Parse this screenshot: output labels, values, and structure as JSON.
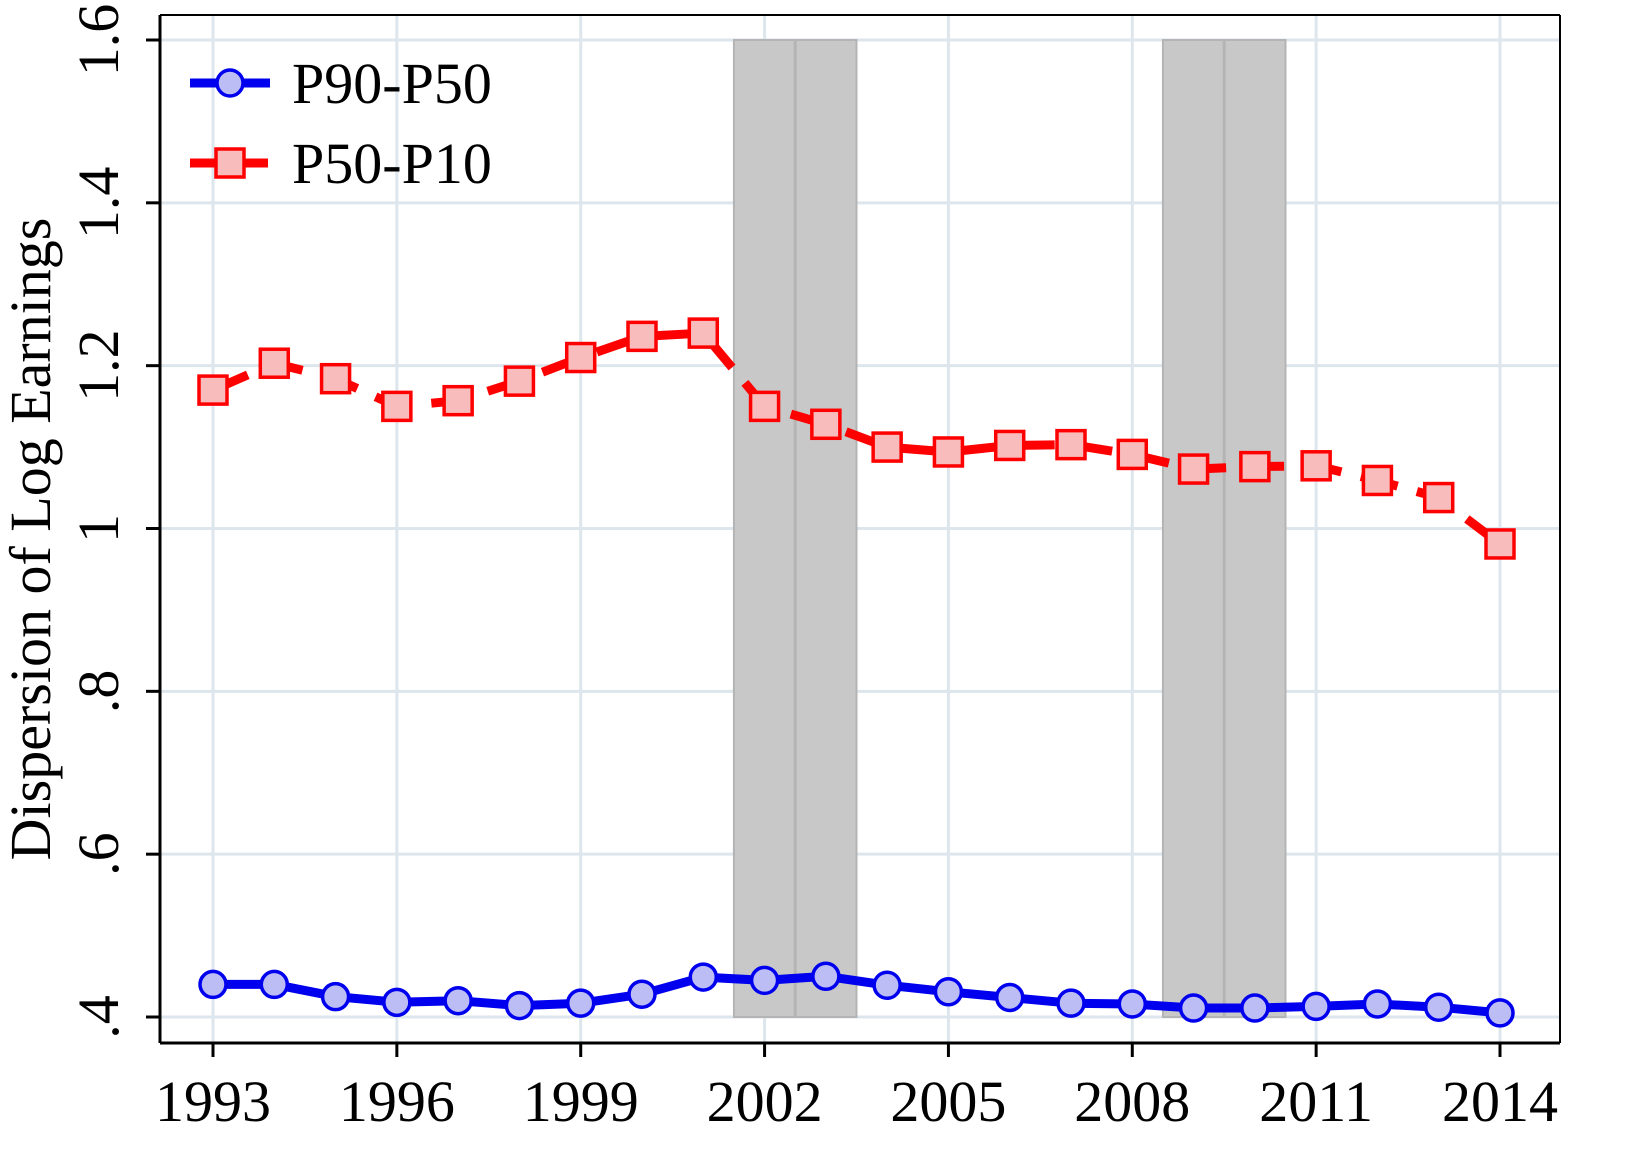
{
  "chart_data": {
    "type": "line",
    "title": "",
    "xlabel": "",
    "ylabel": "Dispersion of Log Earnings",
    "x": [
      1993,
      1994,
      1995,
      1996,
      1997,
      1998,
      1999,
      2000,
      2001,
      2002,
      2003,
      2004,
      2005,
      2006,
      2007,
      2008,
      2009,
      2010,
      2011,
      2012,
      2013,
      2014
    ],
    "xlim": [
      1993,
      2014
    ],
    "ylim": [
      0.4,
      1.6
    ],
    "xticks": [
      1993,
      1996,
      1999,
      2002,
      2005,
      2008,
      2011,
      2014
    ],
    "xtick_labels": [
      "1993",
      "1996",
      "1999",
      "2002",
      "2005",
      "2008",
      "2011",
      "2014"
    ],
    "yticks": [
      0.4,
      0.6,
      0.8,
      1.0,
      1.2,
      1.4,
      1.6
    ],
    "ytick_labels": [
      ".4",
      ".6",
      ".8",
      "1",
      "1.2",
      "1.4",
      "1.6"
    ],
    "grid": true,
    "legend_position": "top-left",
    "shaded_periods": [
      [
        2001.5,
        2003.5
      ],
      [
        2008.5,
        2010.5
      ]
    ],
    "shaded_dividers": [
      2002.5,
      2009.5
    ],
    "series": [
      {
        "name": "P90-P50",
        "color": "#0000ee",
        "marker_fill": "#bdbdf5",
        "marker": "circle",
        "line_style": "solid",
        "values": [
          0.44,
          0.44,
          0.425,
          0.418,
          0.42,
          0.414,
          0.417,
          0.428,
          0.449,
          0.445,
          0.45,
          0.439,
          0.431,
          0.424,
          0.417,
          0.416,
          0.411,
          0.411,
          0.413,
          0.416,
          0.412,
          0.405
        ]
      },
      {
        "name": "P50-P10",
        "color": "#ff0000",
        "marker_fill": "#f9bcbc",
        "marker": "square",
        "line_style": "dashed",
        "values": [
          1.17,
          1.203,
          1.184,
          1.15,
          1.157,
          1.181,
          1.21,
          1.236,
          1.24,
          1.15,
          1.128,
          1.1,
          1.094,
          1.102,
          1.103,
          1.091,
          1.073,
          1.076,
          1.077,
          1.059,
          1.038,
          0.981
        ]
      }
    ],
    "colors": {
      "grid": "#dde6ec",
      "shade": "#c8c8c8",
      "shade_border": "#b4b4b4",
      "axis": "#000000"
    }
  }
}
